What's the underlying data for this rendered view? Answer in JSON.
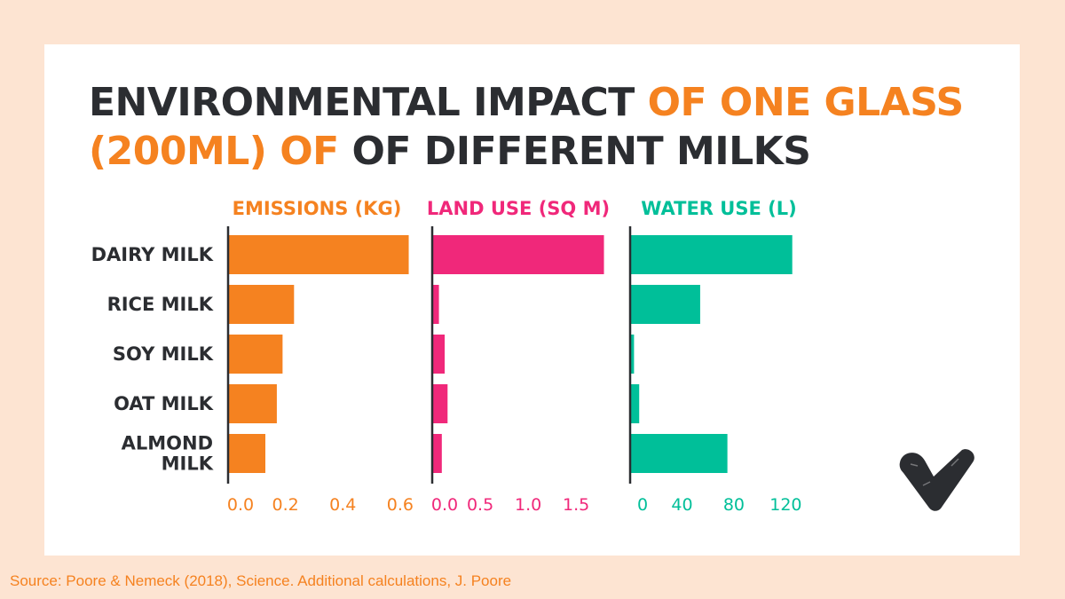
{
  "title": {
    "line1_dark": "ENVIRONMENTAL IMPACT",
    "line1_accent": "OF ONE GLASS",
    "line2_accent": "(200ML) OF",
    "line2_dark": "OF DIFFERENT MILKS"
  },
  "source": "Source: Poore & Nemeck (2018), Science. Additional calculations, J. Poore",
  "chart_data": {
    "type": "bar",
    "orientation": "horizontal",
    "categories": [
      "DAIRY MILK",
      "RICE MILK",
      "SOY MILK",
      "OAT MILK",
      "ALMOND MILK"
    ],
    "panels": [
      {
        "name": "EMISSIONS (KG)",
        "color": "#f58220",
        "values": [
          0.63,
          0.23,
          0.19,
          0.17,
          0.13
        ],
        "xlim": [
          0,
          0.65
        ],
        "ticks": [
          0,
          0.2,
          0.4,
          0.6
        ],
        "tick_labels": [
          "0.0",
          "0.2",
          "0.4",
          "0.6"
        ]
      },
      {
        "name": "LAND USE (SQ M)",
        "color": "#f0287a",
        "values": [
          1.79,
          0.07,
          0.13,
          0.16,
          0.1
        ],
        "xlim": [
          0,
          1.85
        ],
        "ticks": [
          0,
          0.5,
          1.0,
          1.5
        ],
        "tick_labels": [
          "0.0",
          "0.5",
          "1.0",
          "1.5"
        ]
      },
      {
        "name": "WATER USE (L)",
        "color": "#00bf99",
        "values": [
          125,
          54,
          3,
          7,
          75
        ],
        "xlim": [
          0,
          130
        ],
        "ticks": [
          0,
          40,
          80,
          120
        ],
        "tick_labels": [
          "0",
          "40",
          "80",
          "120"
        ]
      }
    ],
    "legend": "none",
    "grid": false
  }
}
